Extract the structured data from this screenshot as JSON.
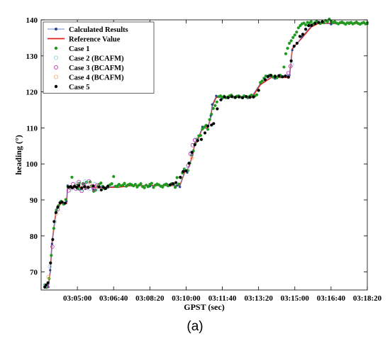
{
  "chart_data": {
    "type": "scatter",
    "title": "",
    "caption": "(a)",
    "xlabel": "GPST (sec)",
    "ylabel": "heading (°)",
    "x_ticks": [
      "03:05:00",
      "03:06:40",
      "03:08:20",
      "03:10:00",
      "03:11:40",
      "03:13:20",
      "03:15:00",
      "03:16:40",
      "03:18:20"
    ],
    "x_tick_seconds": [
      300,
      400,
      500,
      600,
      700,
      800,
      900,
      1000,
      1100
    ],
    "xlim": [
      "03:00:00",
      "03:18:20"
    ],
    "y_ticks": [
      70,
      80,
      90,
      100,
      110,
      120,
      130,
      140
    ],
    "ylim": [
      65,
      140
    ],
    "grid": false,
    "legend_position": "top-left",
    "series": [
      {
        "name": "Reference Value",
        "style": "line",
        "color": "#e8201c",
        "x": [
          210,
          220,
          225,
          230,
          240,
          245,
          255,
          262,
          270,
          273,
          281,
          283,
          300,
          305,
          318,
          322,
          340,
          345,
          368,
          385,
          412,
          450,
          500,
          548,
          575,
          583,
          597,
          603,
          617,
          625,
          630,
          645,
          660,
          668,
          672,
          683,
          700,
          740,
          770,
          782,
          805,
          835,
          845,
          860,
          885,
          893,
          920,
          945,
          965,
          1000,
          1050,
          1100
        ],
        "y": [
          66,
          66,
          70,
          78,
          86,
          88,
          89,
          89,
          89,
          93.5,
          93.5,
          93.5,
          93.5,
          93.5,
          93.5,
          93.5,
          93.5,
          93.5,
          93.5,
          93.5,
          93.5,
          94,
          94,
          94,
          94,
          94,
          98,
          98,
          102,
          106,
          106,
          110,
          110,
          113,
          116,
          118.5,
          118.5,
          118.5,
          118.5,
          118.5,
          122,
          124,
          124,
          124,
          124,
          132,
          135,
          138,
          139,
          139,
          139,
          139
        ]
      },
      {
        "name": "Calculated Results",
        "style": "line",
        "color": "#6d86c6",
        "x": [
          210,
          220,
          225,
          230,
          240,
          245,
          255,
          262,
          270,
          273,
          281,
          283,
          300,
          305,
          318,
          322,
          340,
          345,
          368,
          385,
          412,
          450,
          500,
          548,
          575,
          583,
          597,
          603,
          617,
          625,
          630,
          645,
          660,
          668,
          672,
          683,
          700,
          740,
          770,
          782,
          805,
          835,
          845,
          860,
          885,
          893,
          920,
          945,
          965,
          1000,
          1050,
          1100
        ],
        "y": [
          66.5,
          65.8,
          70.5,
          77.8,
          86.5,
          87.8,
          89.5,
          88.8,
          89.6,
          94,
          93.3,
          93.8,
          94.2,
          92.9,
          94.5,
          93.1,
          94,
          92.8,
          93.7,
          93.5,
          94.1,
          94.3,
          93.8,
          94.3,
          94,
          93.6,
          98.4,
          97.6,
          102.5,
          105.6,
          106.4,
          110.3,
          109.6,
          113.4,
          116.5,
          118.9,
          118.2,
          118.8,
          118.3,
          119,
          122.4,
          124.4,
          123.7,
          124.3,
          124.6,
          131.6,
          135.4,
          138.3,
          139.3,
          138.8,
          139.2,
          138.9
        ]
      },
      {
        "name": "Case 1",
        "style": "dots",
        "color": "#1f9a1f",
        "x": [
          210,
          215,
          222,
          228,
          235,
          242,
          248,
          255,
          262,
          268,
          274,
          279,
          285,
          290,
          295,
          300,
          305,
          310,
          315,
          320,
          325,
          330,
          335,
          340,
          345,
          350,
          355,
          360,
          365,
          370,
          375,
          380,
          385,
          390,
          395,
          400,
          405,
          410,
          415,
          420,
          425,
          430,
          435,
          440,
          445,
          450,
          455,
          460,
          465,
          470,
          475,
          480,
          485,
          490,
          495,
          500,
          505,
          510,
          515,
          520,
          525,
          530,
          535,
          540,
          545,
          550,
          555,
          560,
          565,
          570,
          575,
          580,
          585,
          590,
          595,
          600,
          605,
          610,
          615,
          620,
          625,
          630,
          635,
          640,
          645,
          650,
          655,
          660,
          665,
          670,
          675,
          680,
          685,
          690,
          695,
          700,
          705,
          710,
          715,
          720,
          725,
          730,
          735,
          740,
          745,
          750,
          755,
          760,
          765,
          770,
          775,
          780,
          785,
          790,
          795,
          800,
          805,
          810,
          815,
          820,
          825,
          830,
          835,
          840,
          845,
          850,
          855,
          860,
          865,
          870,
          875,
          880,
          885,
          890,
          895,
          900,
          905,
          910,
          915,
          920,
          925,
          930,
          935,
          940,
          945,
          950,
          955,
          960,
          965,
          970,
          975,
          980,
          985,
          990,
          995,
          1000,
          1005,
          1010,
          1015,
          1020,
          1025,
          1030,
          1035,
          1040,
          1045,
          1050,
          1055,
          1060,
          1065,
          1070,
          1075,
          1080,
          1085,
          1090,
          1095,
          1100
        ],
        "y": [
          66.3,
          65.7,
          68.2,
          74.6,
          82.1,
          87.2,
          88.4,
          89.6,
          88.9,
          90.1,
          93.7,
          93.4,
          96.3,
          93.6,
          94.1,
          93.2,
          94.6,
          93.1,
          94.5,
          93.8,
          94.9,
          93.5,
          95,
          93.9,
          92.4,
          92.7,
          93.9,
          94.3,
          94.7,
          93.8,
          93.1,
          93.4,
          93.9,
          94.2,
          94.5,
          96.5,
          93.8,
          93.7,
          94.3,
          93.9,
          94.1,
          94.6,
          93.8,
          94.2,
          94.4,
          94.1,
          93.9,
          94.3,
          93.6,
          94.1,
          94.5,
          93.7,
          93.4,
          94.1,
          93.7,
          94.3,
          94.6,
          93.5,
          94.1,
          94.4,
          94.2,
          93.8,
          93.6,
          94.2,
          94.4,
          93.9,
          94.1,
          94.5,
          94.3,
          93.5,
          96.2,
          94.4,
          96.2,
          97.5,
          98.6,
          98.1,
          98.2,
          100.2,
          102.4,
          103.6,
          105.5,
          106.9,
          107.8,
          107.9,
          109.7,
          110.2,
          110.7,
          109.6,
          112.3,
          113.8,
          115.4,
          116.2,
          117.2,
          118.7,
          118.9,
          118.5,
          118.8,
          118.4,
          118.6,
          118.9,
          119.1,
          118.6,
          118.4,
          118.8,
          118.9,
          118.6,
          118.4,
          118.9,
          118.7,
          118.5,
          118.8,
          119.1,
          118.6,
          118.9,
          119.2,
          120.5,
          122.6,
          123,
          123.8,
          124.4,
          124.2,
          124.6,
          124.5,
          124.1,
          124.4,
          123.9,
          124.3,
          124.6,
          124.2,
          126.9,
          130.6,
          132.1,
          133.5,
          134.2,
          135.1,
          135.8,
          136.6,
          137.8,
          138.4,
          138.9,
          139.1,
          138.6,
          139.3,
          139.1,
          139.5,
          138.8,
          139.2,
          139.6,
          139.3,
          139,
          139.4,
          139.2,
          139.8,
          139.5,
          140.2,
          139.6,
          139.3,
          139.5,
          139.1,
          138.9,
          139.2,
          139.4,
          139.1,
          138.8,
          139.2,
          139,
          139.3,
          138.9,
          139.1,
          139.4,
          139,
          138.8,
          139.1,
          139.3,
          138.9,
          139.2
        ]
      },
      {
        "name": "Case 2 (BCAFM)",
        "style": "open-circle",
        "color": "#8fd6e6",
        "x": [
          212,
          224,
          238,
          262,
          285,
          298,
          310,
          322,
          335,
          348,
          360,
          602,
          614,
          626,
          880,
          892
        ],
        "y": [
          66.2,
          71.5,
          84,
          88.9,
          93.2,
          94.5,
          92.9,
          95.2,
          93.1,
          94.4,
          93,
          98.5,
          103.2,
          106.8,
          124.5,
          127.6
        ]
      },
      {
        "name": "Case 3 (BCAFM)",
        "style": "open-circle",
        "color": "#c03ab8",
        "x": [
          216,
          231,
          246,
          276,
          288,
          296,
          304,
          312,
          318,
          326,
          332,
          340,
          346,
          354,
          606,
          612,
          618,
          624,
          882,
          888
        ],
        "y": [
          66,
          77,
          87.4,
          92.6,
          94.4,
          93.1,
          95,
          92.5,
          94.3,
          93.4,
          95.2,
          93.8,
          92.9,
          94.1,
          99.6,
          102.8,
          105.2,
          106.6,
          125.2,
          127.1
        ]
      },
      {
        "name": "Case 4 (BCAFM)",
        "style": "open-circle",
        "color": "#f5b27a",
        "x": [
          220,
          242,
          284,
          300,
          318,
          336,
          356,
          616
        ],
        "y": [
          68.6,
          86.2,
          93.5,
          94.1,
          93.6,
          94.2,
          93.7,
          101.6
        ]
      },
      {
        "name": "Case 5",
        "style": "dots",
        "color": "#000000",
        "x": [
          210,
          214,
          219,
          226,
          232,
          236,
          241,
          246,
          252,
          258,
          266,
          275,
          281,
          286,
          292,
          298,
          304,
          312,
          320,
          330,
          344,
          360,
          366,
          372,
          378,
          384,
          556,
          564,
          572,
          584,
          592,
          600,
          608,
          616,
          624,
          632,
          642,
          652,
          660,
          670,
          676,
          686,
          696,
          706,
          716,
          726,
          736,
          746,
          756,
          766,
          776,
          786,
          800,
          818,
          826,
          834,
          846,
          856,
          866,
          874,
          882,
          890,
          898,
          906,
          914,
          922,
          930,
          938,
          946,
          956,
          966,
          976
        ],
        "y": [
          65.8,
          66.4,
          67,
          72.5,
          79,
          84,
          86.5,
          88,
          89.2,
          89.4,
          89.1,
          93.6,
          93.7,
          93.4,
          93.8,
          93.5,
          94,
          93.3,
          93.7,
          93.5,
          93.9,
          93.6,
          92.8,
          93.5,
          93.2,
          93.8,
          94.2,
          94.5,
          94.8,
          96.3,
          97.9,
          98.1,
          100.2,
          103.2,
          105.3,
          106.5,
          106.8,
          108.6,
          110.5,
          110.8,
          111.2,
          115.3,
          117.8,
          118.6,
          118.4,
          118.7,
          118.5,
          118.6,
          118.4,
          118.7,
          118.5,
          118.6,
          120.4,
          123.4,
          124.3,
          124.6,
          124.3,
          124.5,
          124.2,
          124.4,
          124.1,
          128.6,
          132.7,
          133.5,
          135.4,
          136,
          137.4,
          138.4,
          138.5,
          139,
          139.3,
          139.5
        ]
      }
    ],
    "legend": [
      "Calculated Results",
      "Reference Value",
      "Case 1",
      "Case 2 (BCAFM)",
      "Case 3 (BCAFM)",
      "Case 4 (BCAFM)",
      "Case 5"
    ],
    "colors": {
      "axis": "#000000",
      "legend_border": "#000000"
    }
  }
}
